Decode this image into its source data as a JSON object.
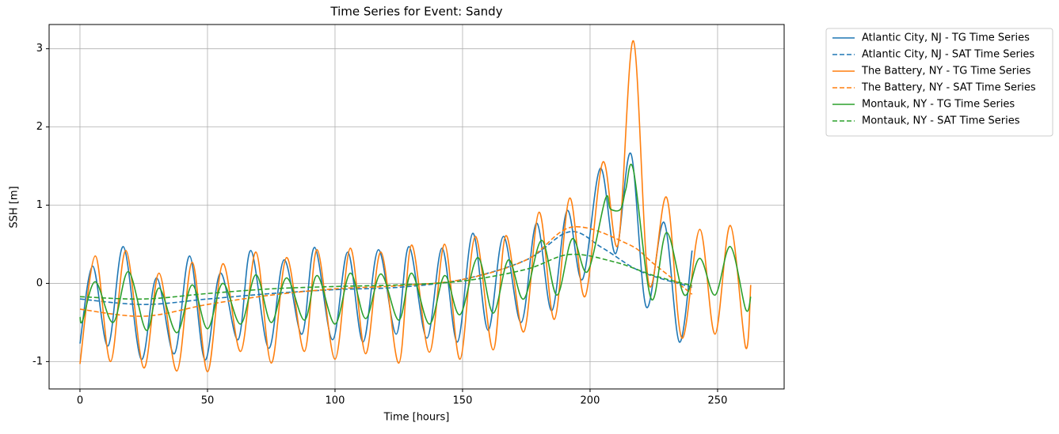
{
  "chart_data": {
    "type": "line",
    "title": "Time Series for Event: Sandy",
    "xlabel": "Time [hours]",
    "ylabel": "SSH [m]",
    "xlim": [
      -12.1,
      276.1
    ],
    "ylim": [
      -1.35,
      3.31
    ],
    "xticks": [
      0,
      50,
      100,
      150,
      200,
      250
    ],
    "yticks": [
      -1,
      0,
      1,
      2,
      3
    ],
    "grid": true,
    "legend_loc": "outside",
    "series": [
      {
        "name": "Atlantic City, NJ - TG Time Series",
        "color": "#1f77b4",
        "dashed": false,
        "x": [
          0,
          5,
          11,
          17,
          24,
          30,
          37,
          43,
          49,
          55,
          62,
          67,
          74,
          80,
          87,
          92,
          99,
          105,
          111,
          117,
          124,
          129,
          136,
          142,
          148,
          154,
          160,
          166,
          173,
          179,
          185,
          191,
          197,
          204,
          210,
          216,
          222,
          229,
          235,
          240
        ],
        "values": [
          -0.77,
          0.22,
          -0.8,
          0.47,
          -0.97,
          0.07,
          -0.9,
          0.35,
          -0.98,
          0.13,
          -0.72,
          0.42,
          -0.83,
          0.3,
          -0.65,
          0.46,
          -0.72,
          0.4,
          -0.75,
          0.43,
          -0.65,
          0.47,
          -0.7,
          0.45,
          -0.75,
          0.64,
          -0.6,
          0.6,
          -0.5,
          0.77,
          -0.35,
          0.93,
          0.05,
          1.47,
          0.38,
          1.66,
          -0.3,
          0.78,
          -0.75,
          0.42
        ]
      },
      {
        "name": "Atlantic City, NJ - SAT Time Series",
        "color": "#1f77b4",
        "dashed": true,
        "x": [
          0,
          25,
          50,
          75,
          100,
          125,
          150,
          175,
          192,
          205,
          220,
          240
        ],
        "values": [
          -0.2,
          -0.27,
          -0.2,
          -0.13,
          -0.08,
          -0.05,
          0.05,
          0.3,
          0.66,
          0.45,
          0.15,
          -0.05
        ]
      },
      {
        "name": "The Battery, NY - TG Time Series",
        "color": "#ff7f0e",
        "dashed": false,
        "x": [
          0,
          6,
          12,
          18,
          25,
          31,
          38,
          44,
          50,
          56,
          63,
          69,
          75,
          81,
          88,
          93,
          100,
          106,
          112,
          118,
          125,
          130,
          137,
          143,
          149,
          155,
          162,
          167,
          174,
          180,
          186,
          192,
          198,
          205,
          211,
          217,
          223,
          230,
          236,
          243,
          249,
          255,
          261,
          263
        ],
        "values": [
          -1.03,
          0.35,
          -1.0,
          0.42,
          -1.08,
          0.13,
          -1.12,
          0.27,
          -1.13,
          0.25,
          -0.87,
          0.4,
          -1.02,
          0.33,
          -0.87,
          0.43,
          -0.97,
          0.45,
          -0.9,
          0.4,
          -1.02,
          0.49,
          -0.88,
          0.5,
          -0.97,
          0.6,
          -0.85,
          0.61,
          -0.62,
          0.91,
          -0.46,
          1.09,
          -0.17,
          1.55,
          0.5,
          3.1,
          0.0,
          1.1,
          -0.7,
          0.69,
          -0.65,
          0.74,
          -0.82,
          -0.02
        ]
      },
      {
        "name": "The Battery, NY - SAT Time Series",
        "color": "#ff7f0e",
        "dashed": true,
        "x": [
          0,
          25,
          50,
          75,
          100,
          125,
          150,
          175,
          193,
          215,
          225,
          240
        ],
        "values": [
          -0.33,
          -0.42,
          -0.27,
          -0.15,
          -0.07,
          -0.03,
          0.05,
          0.3,
          0.72,
          0.5,
          0.25,
          -0.14
        ]
      },
      {
        "name": "Montauk, NY - TG Time Series",
        "color": "#2ca02c",
        "dashed": false,
        "x": [
          0,
          1,
          6,
          13,
          19,
          26,
          31,
          38,
          44,
          50,
          56,
          63,
          69,
          75,
          81,
          88,
          93,
          100,
          106,
          112,
          118,
          125,
          130,
          137,
          143,
          149,
          156,
          162,
          168,
          174,
          181,
          187,
          193,
          199,
          206,
          208,
          212,
          214,
          217,
          224,
          230,
          237,
          243,
          249,
          255,
          261,
          263
        ],
        "values": [
          -0.43,
          -0.48,
          0.02,
          -0.5,
          0.15,
          -0.6,
          -0.06,
          -0.63,
          -0.02,
          -0.58,
          0.0,
          -0.52,
          0.11,
          -0.5,
          0.07,
          -0.47,
          0.1,
          -0.52,
          0.13,
          -0.45,
          0.12,
          -0.47,
          0.13,
          -0.52,
          0.1,
          -0.4,
          0.33,
          -0.38,
          0.3,
          -0.2,
          0.55,
          -0.15,
          0.57,
          0.15,
          1.08,
          0.95,
          0.95,
          1.2,
          1.45,
          -0.2,
          0.65,
          -0.15,
          0.32,
          -0.15,
          0.47,
          -0.33,
          -0.17
        ]
      },
      {
        "name": "Montauk, NY - SAT Time Series",
        "color": "#2ca02c",
        "dashed": true,
        "x": [
          0,
          25,
          50,
          75,
          100,
          125,
          150,
          175,
          192,
          210,
          225,
          240
        ],
        "values": [
          -0.17,
          -0.2,
          -0.13,
          -0.07,
          -0.04,
          -0.02,
          0.03,
          0.18,
          0.37,
          0.27,
          0.1,
          -0.03
        ]
      }
    ]
  }
}
